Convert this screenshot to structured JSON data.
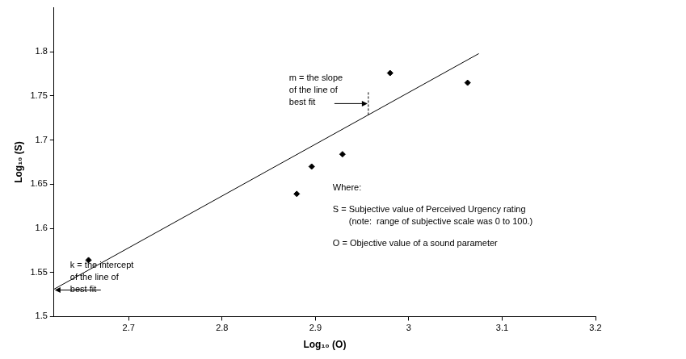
{
  "chart_data": {
    "type": "scatter",
    "x_label": "Log₁₀ (O)",
    "y_label": "Log₁₀ (S)",
    "series": [
      {
        "type": "scatter",
        "marker": "diamond",
        "color": "#000000",
        "x": [
          2.657,
          2.88,
          2.896,
          2.929,
          2.98,
          3.063
        ],
        "values": [
          1.564,
          1.639,
          1.67,
          1.684,
          1.776,
          1.765
        ]
      },
      {
        "type": "line",
        "line_style": "solid",
        "color": "#000000",
        "x": [
          2.62,
          3.075
        ],
        "values": [
          1.531,
          1.798
        ]
      }
    ],
    "xlim": [
      2.62,
      3.2
    ],
    "xticks": [
      2.7,
      2.8,
      2.9,
      3,
      3.1,
      3.2
    ],
    "ylim": [
      1.5,
      1.85
    ],
    "yticks": [
      1.5,
      1.55,
      1.6,
      1.65,
      1.7,
      1.75,
      1.8
    ],
    "grid": false,
    "annotations": {
      "slope": [
        "m = the slope",
        "of the line of",
        "best fit"
      ],
      "intercept": [
        "k = the intercept",
        "of the line of",
        "best fit"
      ],
      "where": "Where:",
      "key": [
        "S = Subjective value of Perceived Urgency rating",
        "(note:  range of subjective scale was 0 to 100.)",
        "O = Objective value of a sound parameter"
      ]
    }
  }
}
